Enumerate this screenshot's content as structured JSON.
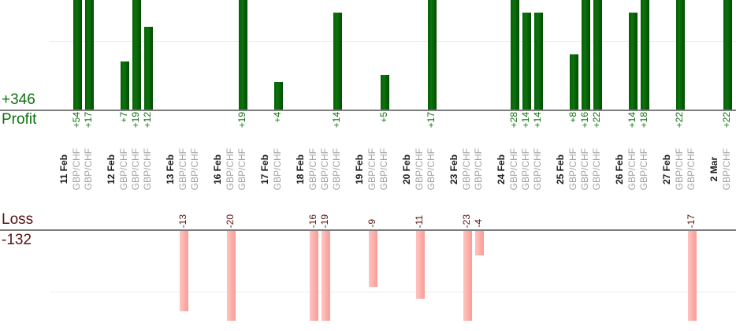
{
  "chart_data": {
    "type": "bar",
    "description": "Daily per-trade profit/loss bar chart, split into a Profit panel (green, up) and a Loss panel (pink, down)",
    "profit_panel": {
      "axis_label": "Profit",
      "total": "+346",
      "gridline_interval": 10
    },
    "loss_panel": {
      "axis_label": "Loss",
      "total": "-132",
      "gridline_interval": 10
    },
    "legend": "none",
    "groups": [
      {
        "date": "11 Feb",
        "trades": [
          {
            "symbol": "GBP/CHF",
            "value": 54,
            "label": "+54"
          },
          {
            "symbol": "GBP/CHF",
            "value": 17,
            "label": "+17"
          }
        ]
      },
      {
        "date": "12 Feb",
        "trades": [
          {
            "symbol": "GBP/CHF",
            "value": 7,
            "label": "+7"
          },
          {
            "symbol": "GBP/CHF",
            "value": 19,
            "label": "+19"
          },
          {
            "symbol": "GBP/CHF",
            "value": 12,
            "label": "+12"
          }
        ]
      },
      {
        "date": "13 Feb",
        "trades": [
          {
            "symbol": "GBP/CHF",
            "value": -13,
            "label": "-13"
          },
          {
            "symbol": "GBP/CHF",
            "value": null,
            "label": ""
          }
        ]
      },
      {
        "date": "16 Feb",
        "trades": [
          {
            "symbol": "GBP/CHF",
            "value": -20,
            "label": "-20"
          },
          {
            "symbol": "GBP/CHF",
            "value": 19,
            "label": "+19"
          }
        ]
      },
      {
        "date": "17 Feb",
        "trades": [
          {
            "symbol": "GBP/CHF",
            "value": 4,
            "label": "+4"
          }
        ]
      },
      {
        "date": "18 Feb",
        "trades": [
          {
            "symbol": "GBP/CHF",
            "value": -16,
            "label": "-16"
          },
          {
            "symbol": "GBP/CHF",
            "value": -19,
            "label": "-19"
          },
          {
            "symbol": "GBP/CHF",
            "value": 14,
            "label": "+14"
          }
        ]
      },
      {
        "date": "19 Feb",
        "trades": [
          {
            "symbol": "GBP/CHF",
            "value": -9,
            "label": "-9"
          },
          {
            "symbol": "GBP/CHF",
            "value": 5,
            "label": "+5"
          }
        ]
      },
      {
        "date": "20 Feb",
        "trades": [
          {
            "symbol": "GBP/CHF",
            "value": -11,
            "label": "-11"
          },
          {
            "symbol": "GBP/CHF",
            "value": 17,
            "label": "+17"
          }
        ]
      },
      {
        "date": "23 Feb",
        "trades": [
          {
            "symbol": "GBP/CHF",
            "value": -23,
            "label": "-23"
          },
          {
            "symbol": "GBP/CHF",
            "value": -4,
            "label": "-4"
          }
        ]
      },
      {
        "date": "24 Feb",
        "trades": [
          {
            "symbol": "GBP/CHF",
            "value": 28,
            "label": "+28"
          },
          {
            "symbol": "GBP/CHF",
            "value": 14,
            "label": "+14"
          },
          {
            "symbol": "GBP/CHF",
            "value": 14,
            "label": "+14"
          }
        ]
      },
      {
        "date": "25 Feb",
        "trades": [
          {
            "symbol": "GBP/CHF",
            "value": 8,
            "label": "+8"
          },
          {
            "symbol": "GBP/CHF",
            "value": 16,
            "label": "+16"
          },
          {
            "symbol": "GBP/CHF",
            "value": 22,
            "label": "+22"
          }
        ]
      },
      {
        "date": "26 Feb",
        "trades": [
          {
            "symbol": "GBP/CHF",
            "value": 14,
            "label": "+14"
          },
          {
            "symbol": "GBP/CHF",
            "value": 18,
            "label": "+18"
          }
        ]
      },
      {
        "date": "27 Feb",
        "trades": [
          {
            "symbol": "GBP/CHF",
            "value": 22,
            "label": "+22"
          },
          {
            "symbol": "GBP/CHF",
            "value": -17,
            "label": "-17"
          }
        ]
      },
      {
        "date": "2 Mar",
        "trades": [
          {
            "symbol": "GBP/CHF",
            "value": 22,
            "label": "+22"
          }
        ]
      }
    ]
  },
  "colors": {
    "profit_bar": "#0a6b0a",
    "profit_text": "#0d720d",
    "loss_bar": "#fbaaa5",
    "loss_text": "#5c1111",
    "date_text": "#1c1c1c",
    "symbol_text": "#a2a2a2",
    "baseline": "#7d7d7d",
    "gridline": "#ececec"
  }
}
